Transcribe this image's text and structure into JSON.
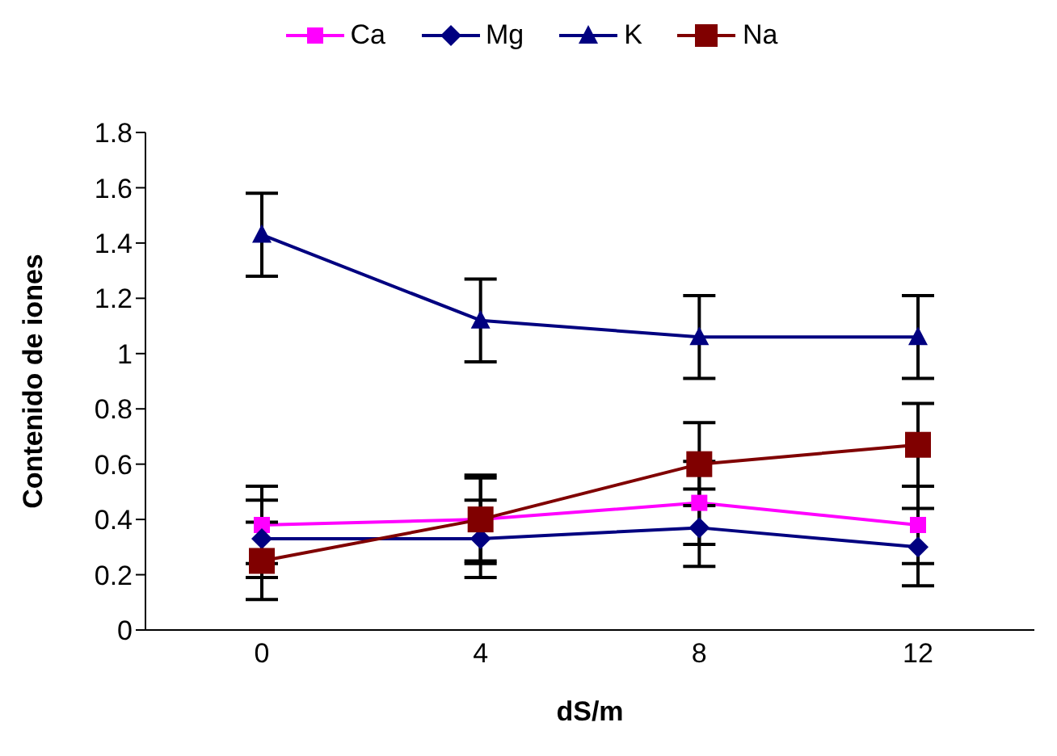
{
  "chart_data": {
    "type": "line",
    "xlabel": "dS/m",
    "ylabel": "Contenido de iones",
    "categories": [
      "0",
      "4",
      "8",
      "12"
    ],
    "ylim": [
      0,
      1.8
    ],
    "yticks": [
      0,
      0.2,
      0.4,
      0.6,
      0.8,
      1,
      1.2,
      1.4,
      1.6,
      1.8
    ],
    "grid": false,
    "legend": "top",
    "series": [
      {
        "name": "Ca",
        "color": "#ff00ff",
        "marker": "square",
        "values": [
          0.38,
          0.4,
          0.46,
          0.38
        ],
        "errors": [
          0.14,
          0.15,
          0.15,
          0.14
        ]
      },
      {
        "name": "Mg",
        "color": "#000080",
        "marker": "diamond",
        "values": [
          0.33,
          0.33,
          0.37,
          0.3
        ],
        "errors": [
          0.14,
          0.14,
          0.14,
          0.14
        ]
      },
      {
        "name": "K",
        "color": "#000080",
        "marker": "triangle",
        "values": [
          1.43,
          1.12,
          1.06,
          1.06
        ],
        "errors": [
          0.15,
          0.15,
          0.15,
          0.15
        ]
      },
      {
        "name": "Na",
        "color": "#800000",
        "marker": "square",
        "values": [
          0.25,
          0.4,
          0.6,
          0.67
        ],
        "errors": [
          0.14,
          0.16,
          0.15,
          0.15
        ]
      }
    ]
  }
}
